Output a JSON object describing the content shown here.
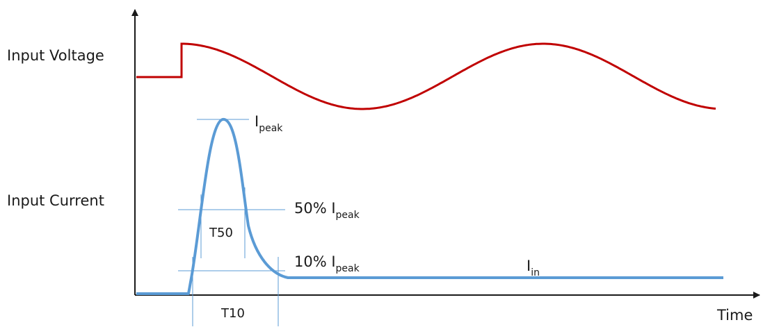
{
  "labels": {
    "input_voltage": "Input Voltage",
    "input_current": "Input Current",
    "time": "Time",
    "t50": "T50",
    "t10": "T10",
    "ipeak_main": "I",
    "ipeak_sub": "peak",
    "p50_prefix": "50% I",
    "p50_sub": "peak",
    "p10_prefix": "10% I",
    "p10_sub": "peak",
    "iin_main": "I",
    "iin_sub": "in"
  },
  "colors": {
    "voltage": "#c00000",
    "current": "#5b9bd5",
    "guide": "#5b9bd5",
    "axis": "#1a1a1a"
  }
}
